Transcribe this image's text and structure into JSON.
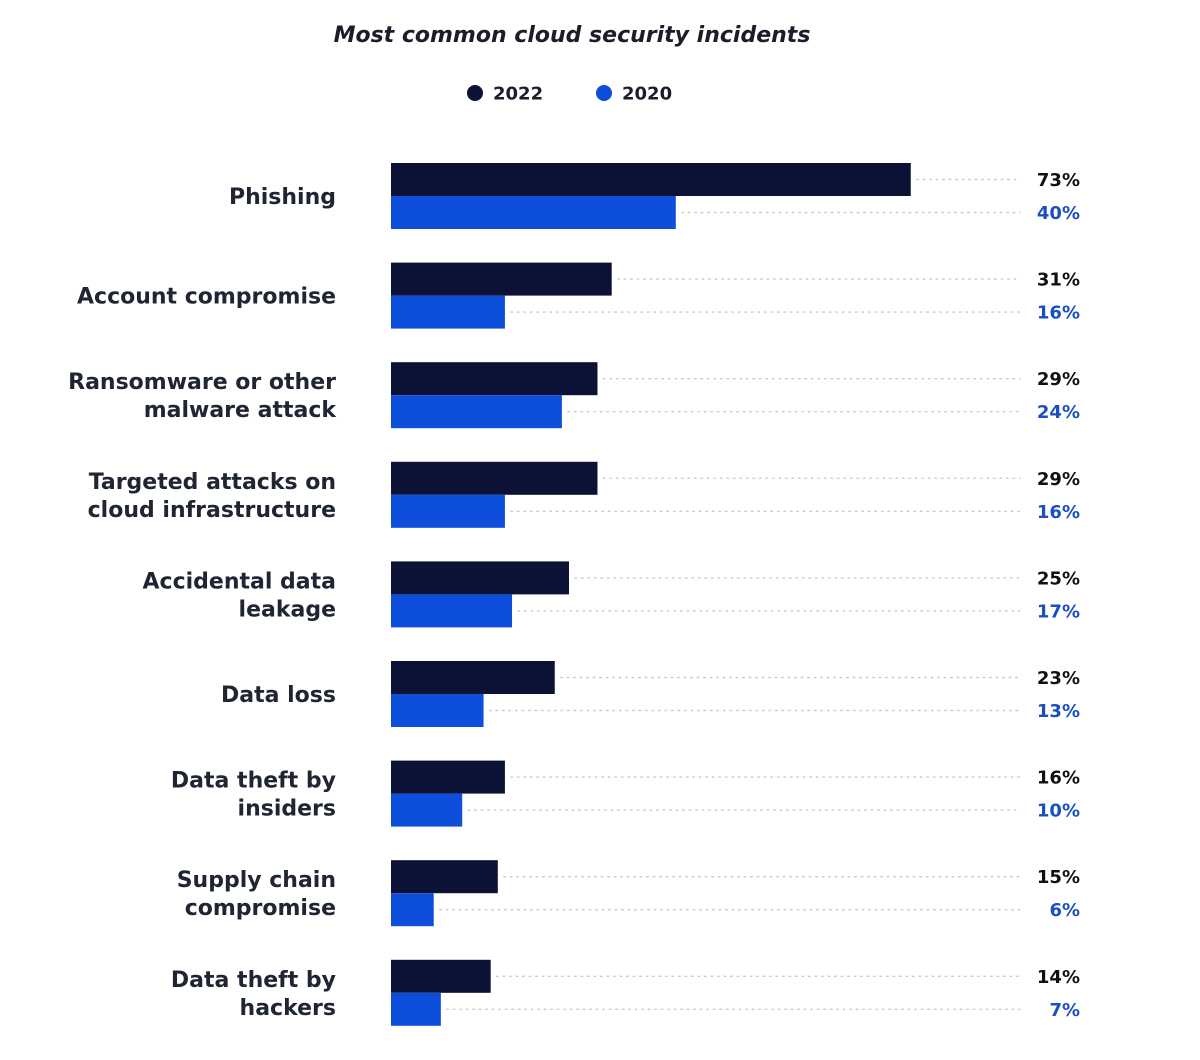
{
  "chart_data": {
    "type": "bar",
    "orientation": "horizontal",
    "title": "Most common cloud security incidents",
    "categories": [
      [
        "Phishing"
      ],
      [
        "Account compromise"
      ],
      [
        "Ransomware or other",
        "malware attack"
      ],
      [
        "Targeted attacks on",
        "cloud infrastructure"
      ],
      [
        "Accidental data",
        "leakage"
      ],
      [
        "Data loss"
      ],
      [
        "Data theft by",
        "insiders"
      ],
      [
        "Supply chain",
        "compromise"
      ],
      [
        "Data theft by",
        "hackers"
      ]
    ],
    "series": [
      {
        "name": "2022",
        "color": "#0c1235",
        "label_color": "#111111",
        "values": [
          73,
          31,
          29,
          29,
          25,
          23,
          16,
          15,
          14
        ]
      },
      {
        "name": "2020",
        "color": "#0d4fdb",
        "label_color": "#1a4fc4",
        "values": [
          40,
          16,
          24,
          16,
          17,
          13,
          10,
          6,
          7
        ]
      }
    ],
    "value_suffix": "%",
    "xlim": [
      0,
      100
    ],
    "legend_position": "top-center",
    "grid": false
  }
}
